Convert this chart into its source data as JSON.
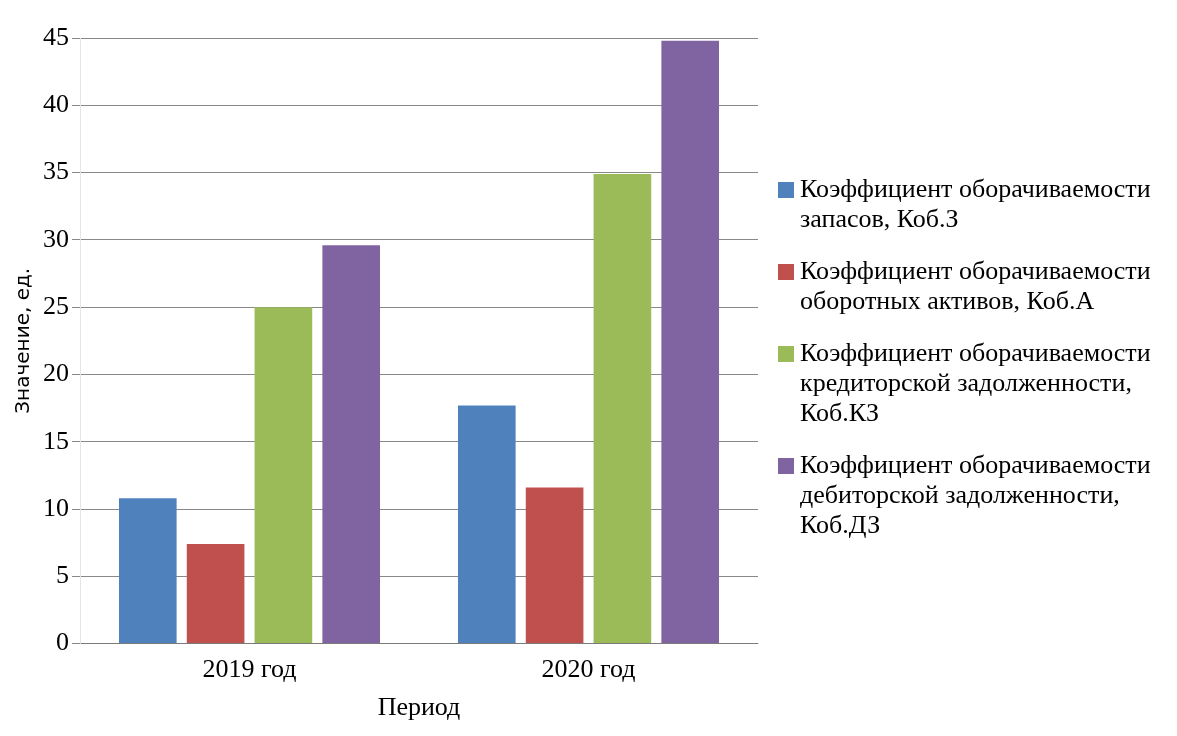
{
  "chart_data": {
    "type": "bar",
    "xlabel": "Период",
    "ylabel": "Значение, ед.",
    "categories": [
      "2019 год",
      "2020 год"
    ],
    "series": [
      {
        "name": "Коэффициент оборачиваемости запасов, Коб.З",
        "color": "#4f81bd",
        "values": [
          10.8,
          17.7
        ]
      },
      {
        "name": "Коэффициент оборачиваемости оборотных активов, Коб.А",
        "color": "#c0504d",
        "values": [
          7.4,
          11.6
        ]
      },
      {
        "name": "Коэффициент оборачиваемости кредиторской задолженности, Коб.КЗ",
        "color": "#9bbb59",
        "values": [
          25,
          34.9
        ]
      },
      {
        "name": "Коэффициент оборачиваемости дебиторской задолженности, Коб.ДЗ",
        "color": "#8064a2",
        "values": [
          29.6,
          44.8
        ]
      }
    ],
    "ylim": [
      0,
      45
    ],
    "yticks": [
      0,
      5,
      10,
      15,
      20,
      25,
      30,
      35,
      40,
      45
    ],
    "grid": "y",
    "legend": "right"
  }
}
